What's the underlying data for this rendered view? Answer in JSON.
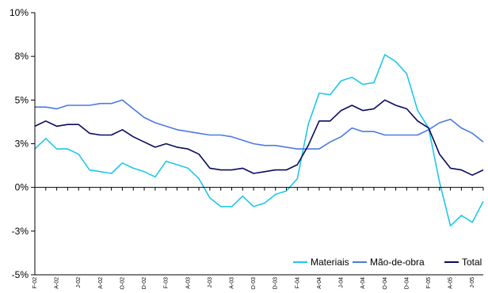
{
  "chart_data": {
    "type": "line",
    "title": "",
    "xlabel": "",
    "ylabel": "",
    "ylim": [
      -5,
      10
    ],
    "y_ticks": [
      -5,
      -2.5,
      0,
      2.5,
      5,
      7.5,
      10
    ],
    "y_tick_labels": [
      "-5%",
      "-3%",
      "0%",
      "3%",
      "5%",
      "8%",
      "10%"
    ],
    "x_tick_labels": [
      "F-02",
      "A-02",
      "J-02",
      "A-02",
      "O-02",
      "D-02",
      "F-03",
      "A-03",
      "J-03",
      "A-03",
      "O-03",
      "D-03",
      "F-04",
      "A-04",
      "J-04",
      "A-04",
      "O-04",
      "D-04",
      "F-05",
      "A-05",
      "J-05"
    ],
    "grid": false,
    "legend_position": "bottom-right",
    "series": [
      {
        "name": "Materiais",
        "color": "#1EC8E8",
        "values": [
          2.2,
          2.8,
          2.2,
          2.2,
          1.9,
          1.0,
          0.9,
          0.8,
          1.4,
          1.1,
          0.9,
          0.6,
          1.5,
          1.3,
          1.1,
          0.5,
          -0.6,
          -1.1,
          -1.1,
          -0.5,
          -1.1,
          -0.9,
          -0.4,
          -0.2,
          0.5,
          3.6,
          5.4,
          5.3,
          6.1,
          6.3,
          5.9,
          6.0,
          7.6,
          7.2,
          6.5,
          4.4,
          3.4,
          0.3,
          -2.2,
          -1.6,
          -2.0,
          -0.8
        ]
      },
      {
        "name": "Mão-de-obra",
        "color": "#4A7AE0",
        "values": [
          4.6,
          4.6,
          4.5,
          4.7,
          4.7,
          4.7,
          4.8,
          4.8,
          5.0,
          4.5,
          4.0,
          3.7,
          3.5,
          3.3,
          3.2,
          3.1,
          3.0,
          3.0,
          2.9,
          2.7,
          2.5,
          2.4,
          2.4,
          2.3,
          2.2,
          2.2,
          2.2,
          2.6,
          2.9,
          3.4,
          3.2,
          3.2,
          3.0,
          3.0,
          3.0,
          3.0,
          3.3,
          3.7,
          3.9,
          3.4,
          3.1,
          2.6
        ]
      },
      {
        "name": "Total",
        "color": "#0A0A60",
        "values": [
          3.5,
          3.8,
          3.5,
          3.6,
          3.6,
          3.1,
          3.0,
          3.0,
          3.3,
          2.9,
          2.6,
          2.3,
          2.5,
          2.3,
          2.2,
          1.9,
          1.1,
          1.0,
          1.0,
          1.1,
          0.8,
          0.9,
          1.0,
          1.0,
          1.3,
          2.4,
          3.8,
          3.8,
          4.4,
          4.7,
          4.4,
          4.5,
          5.0,
          4.7,
          4.5,
          3.8,
          3.4,
          1.9,
          1.1,
          1.0,
          0.7,
          1.0
        ]
      }
    ]
  }
}
